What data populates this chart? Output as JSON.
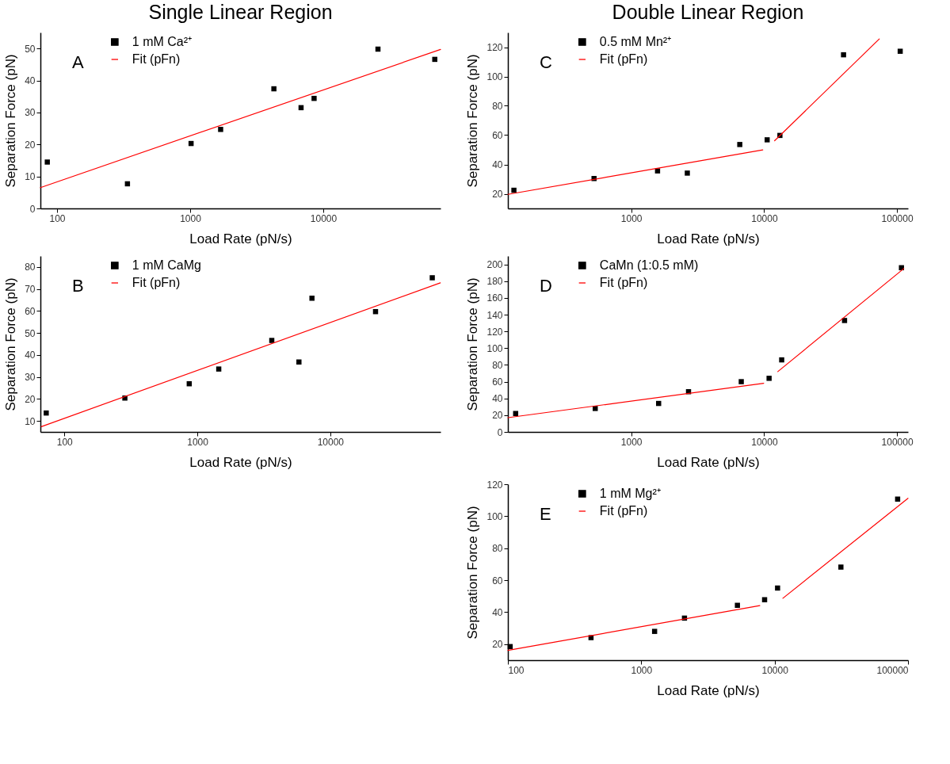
{
  "chart_data": [
    {
      "type": "scatter",
      "title": "Single Linear Region",
      "xlabel": "Load Rate (pN/s)",
      "ylabel": "Separation Force (pN)",
      "annotations": [
        "A"
      ],
      "log": "x",
      "xlim": [
        75,
        76000
      ],
      "ylim": [
        0,
        55
      ],
      "xticks": [
        100,
        1000,
        10000
      ],
      "yticks": [
        0,
        10,
        20,
        30,
        40,
        50
      ],
      "legend": "top left",
      "series": [
        {
          "name": "1 mM Ca²⁺",
          "marker": "square",
          "color": "#000000",
          "x": [
            84.5,
            338,
            1016,
            1694,
            4256,
            6810,
            8530,
            25750,
            68800
          ],
          "values": [
            14.5,
            7.7,
            20.3,
            24.7,
            37.4,
            31.5,
            34.4,
            49.8,
            46.6
          ]
        },
        {
          "name": "Fit (pFn)",
          "type": "line",
          "color": "#ff0000",
          "x": [
            75,
            76000
          ],
          "values": [
            6.5,
            49.7
          ]
        }
      ]
    },
    {
      "type": "scatter",
      "xlabel": "Load Rate (pN/s)",
      "ylabel": "Separation Force (pN)",
      "annotations": [
        "B"
      ],
      "log": "x",
      "xlim": [
        66,
        67500
      ],
      "ylim": [
        5,
        85
      ],
      "xticks": [
        100,
        1000,
        10000
      ],
      "yticks": [
        10,
        20,
        30,
        40,
        50,
        60,
        70,
        80
      ],
      "legend": "top left",
      "series": [
        {
          "name": "1 mM CaMg",
          "marker": "square",
          "color": "#000000",
          "x": [
            73,
            285,
            869,
            1449,
            3630,
            5810,
            7280,
            21900,
            58500
          ],
          "values": [
            13.6,
            20.4,
            26.9,
            33.6,
            46.6,
            36.8,
            65.8,
            59.7,
            75.1
          ]
        },
        {
          "name": "Fit (pFn)",
          "type": "line",
          "color": "#ff0000",
          "x": [
            67,
            67300
          ],
          "values": [
            7.4,
            72.8
          ]
        }
      ]
    },
    {
      "type": "scatter",
      "title": "Double Linear Region",
      "xlabel": "Load Rate (pN/s)",
      "ylabel": "Separation Force (pN)",
      "annotations": [
        "C"
      ],
      "log": "x",
      "xlim": [
        118,
        121000
      ],
      "ylim": [
        10,
        130
      ],
      "xticks": [
        1000,
        10000,
        100000
      ],
      "yticks": [
        20,
        40,
        60,
        80,
        100,
        120
      ],
      "legend": "top left",
      "series": [
        {
          "name": "0.5 mM Mn²⁺",
          "marker": "square",
          "color": "#000000",
          "x": [
            131,
            525,
            1578,
            2643,
            6560,
            10540,
            13150,
            39600,
            105700
          ],
          "values": [
            22.4,
            30.4,
            35.6,
            34.1,
            53.6,
            56.8,
            59.8,
            114.8,
            117.2
          ]
        },
        {
          "name": "Fit (pFn)",
          "type": "line",
          "color": "#ff0000",
          "x": [
            118,
            9770,
            11000,
            12000,
            73600
          ],
          "values": [
            19.6,
            49.9,
            null,
            56.2,
            125.6
          ]
        }
      ]
    },
    {
      "type": "scatter",
      "xlabel": "Load Rate (pN/s)",
      "ylabel": "Separation Force (pN)",
      "annotations": [
        "D"
      ],
      "log": "x",
      "xlim": [
        118,
        121000
      ],
      "ylim": [
        0,
        210
      ],
      "xticks": [
        1000,
        10000,
        100000
      ],
      "yticks": [
        0,
        20,
        40,
        60,
        80,
        100,
        120,
        140,
        160,
        180,
        200
      ],
      "legend": "top left",
      "series": [
        {
          "name": "CaMn (1:0.5 mM)",
          "marker": "square",
          "color": "#000000",
          "x": [
            135,
            536,
            1608,
            2699,
            6730,
            10900,
            13560,
            40300,
            108000
          ],
          "values": [
            22,
            28,
            34,
            48,
            60,
            64,
            86,
            133,
            196
          ]
        },
        {
          "name": "Fit (pFn)",
          "type": "line",
          "color": "#ff0000",
          "x": [
            118,
            9930,
            11000,
            12680,
            112500
          ],
          "values": [
            17,
            58,
            null,
            72,
            195
          ]
        }
      ]
    },
    {
      "type": "scatter",
      "xlabel": "Load Rate (pN/s)",
      "ylabel": "Separation Force (pN)",
      "annotations": [
        "E"
      ],
      "log": "x",
      "xlim": [
        100,
        100000
      ],
      "ylim": [
        10,
        120
      ],
      "xticks": [
        100,
        1000,
        10000,
        100000
      ],
      "yticks": [
        20,
        40,
        60,
        80,
        100,
        120
      ],
      "legend": "top left",
      "series": [
        {
          "name": "1 mM Mg²⁺",
          "marker": "square",
          "color": "#000000",
          "x": [
            104,
            420,
            1259,
            2109,
            5260,
            8410,
            10520,
            31400,
            83600
          ],
          "values": [
            18.5,
            24.1,
            28.0,
            36.3,
            44.3,
            47.8,
            55.1,
            68.2,
            110.7
          ]
        },
        {
          "name": "Fit (pFn)",
          "type": "line",
          "color": "#ff0000",
          "x": [
            100,
            7740,
            9500,
            11530,
            100000
          ],
          "values": [
            16.1,
            44.1,
            null,
            48.7,
            111.2
          ]
        }
      ]
    }
  ]
}
